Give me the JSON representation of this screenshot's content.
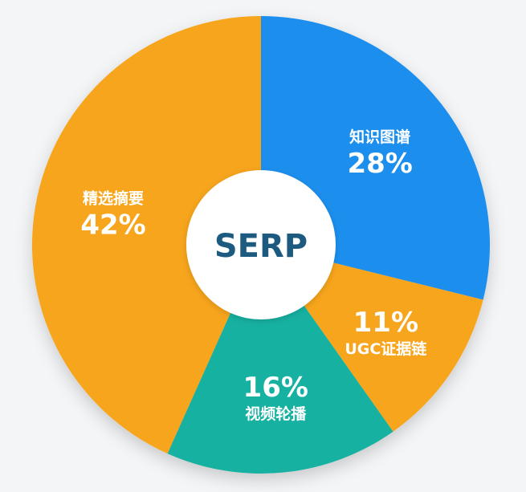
{
  "chart_data": {
    "type": "pie",
    "center_label": "SERP",
    "center_color": "#1c5a80",
    "slices": [
      {
        "label": "知识图谱",
        "value": 28,
        "value_label": "28%",
        "color": "#1e8fee"
      },
      {
        "label": "UGC证据链",
        "value": 11,
        "value_label": "11%",
        "color": "#f7a51c"
      },
      {
        "label": "视频轮播",
        "value": 16,
        "value_label": "16%",
        "color": "#19b1a1"
      },
      {
        "label": "精选摘要",
        "value": 42,
        "value_label": "42%",
        "color": "#f7a51c"
      }
    ],
    "legend": "none"
  }
}
